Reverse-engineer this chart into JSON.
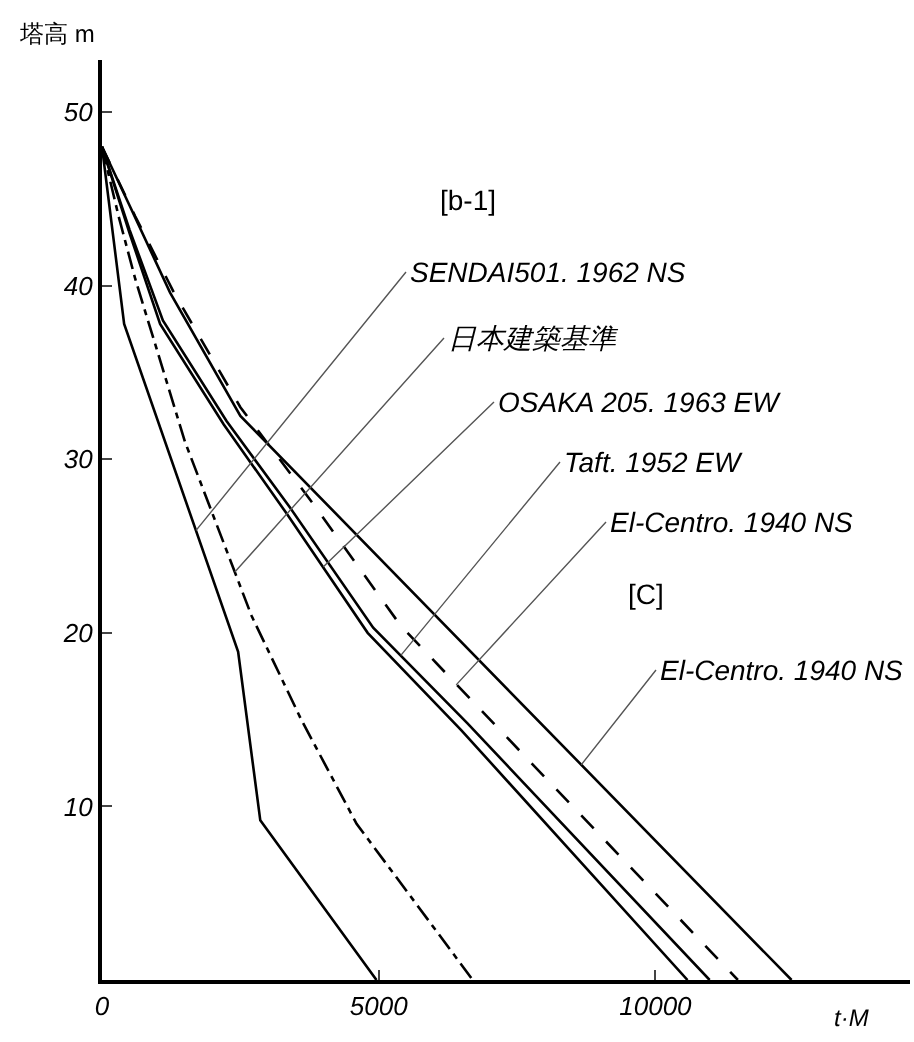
{
  "chart_data": {
    "type": "line",
    "xlabel": "t·M",
    "ylabel": "塔高 m",
    "xlim": [
      0,
      14600
    ],
    "ylim": [
      0,
      53
    ],
    "xticks": [
      0,
      5000,
      10000
    ],
    "yticks": [
      10,
      20,
      30,
      40,
      50
    ],
    "grid": false,
    "marker": "none",
    "series": [
      {
        "color": "#000000",
        "line_style": "solid",
        "x": [
          0,
          400,
          2460,
          2860,
          4960
        ],
        "values": [
          48,
          37.8,
          18.9,
          9.2,
          0
        ]
      },
      {
        "color": "#000000",
        "line_style": "dashdot",
        "x": [
          0,
          300,
          600,
          1500,
          2700,
          3600,
          4600,
          6700
        ],
        "values": [
          48,
          44,
          40.4,
          31,
          21,
          15,
          9,
          0
        ]
      },
      {
        "color": "#000000",
        "line_style": "solid",
        "x": [
          0,
          500,
          1050,
          2200,
          3330,
          4800,
          6490,
          10580
        ],
        "values": [
          48,
          43,
          37.8,
          32,
          26.9,
          20,
          14.4,
          0
        ]
      },
      {
        "color": "#000000",
        "line_style": "solid",
        "x": [
          0,
          500,
          1100,
          2250,
          3400,
          4900,
          6600,
          10980
        ],
        "values": [
          48,
          43.2,
          38,
          32.2,
          27.2,
          20.3,
          14.8,
          0
        ]
      },
      {
        "color": "#000000",
        "line_style": "dashed",
        "x": [
          0,
          600,
          1300,
          2500,
          3800,
          5400,
          11490
        ],
        "values": [
          48,
          44,
          39.6,
          33,
          27.5,
          20.4,
          0
        ]
      },
      {
        "color": "#000000",
        "line_style": "solid",
        "x": [
          0,
          500,
          1230,
          2500,
          12460
        ],
        "values": [
          48,
          44.6,
          39.6,
          32.5,
          0
        ]
      }
    ],
    "annotations": [
      "[b-1]",
      {
        "text": "SENDAI501. 1962 NS",
        "x": 1700,
        "y": 25.9
      },
      {
        "text": "日本建築基準",
        "x": 2400,
        "y": 23.5
      },
      {
        "text": "OSAKA 205. 1963 EW",
        "x": 4000,
        "y": 23.8
      },
      {
        "text": "Taft. 1952 EW",
        "x": 5400,
        "y": 18.7
      },
      {
        "text": "El-Centro. 1940 NS",
        "x": 6400,
        "y": 17
      },
      "[C]",
      {
        "text": "El-Centro. 1940 NS",
        "x": 8660,
        "y": 12.4
      }
    ]
  }
}
